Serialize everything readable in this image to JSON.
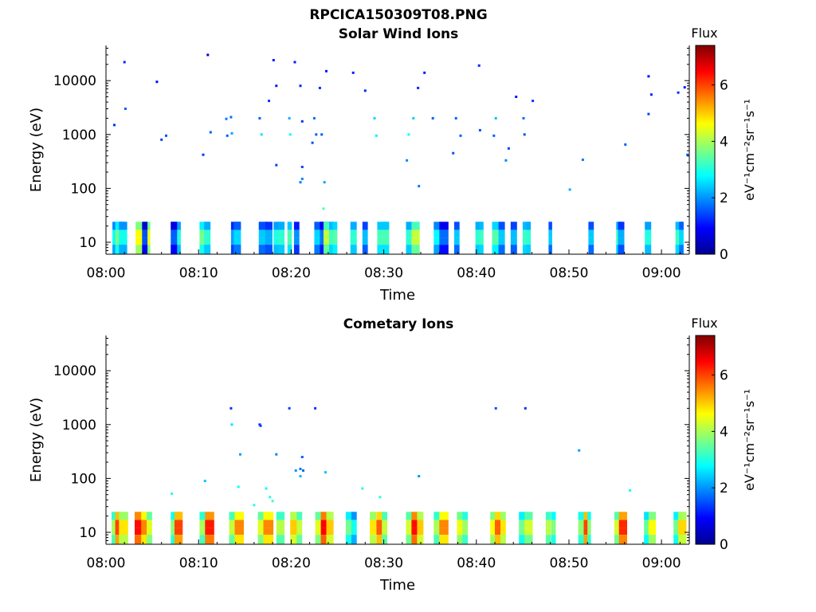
{
  "figure_title": "RPCICA150309T08.PNG",
  "chart_data": [
    {
      "type": "heatmap",
      "title": "Solar Wind Ions",
      "xlabel": "Time",
      "ylabel": "Energy (eV)",
      "yscale": "log",
      "xlim": [
        "08:00",
        "09:03"
      ],
      "ylim": [
        6,
        45000
      ],
      "x_ticks": [
        "08:00",
        "08:10",
        "08:20",
        "08:30",
        "08:40",
        "08:50",
        "09:00"
      ],
      "y_ticks": [
        "10",
        "100",
        "1000",
        "10000"
      ],
      "colorbar": {
        "label": "Flux",
        "unit": "eV⁻¹cm⁻²sr⁻¹s⁻¹",
        "range": [
          0,
          7.4
        ],
        "ticks": [
          "0",
          "2",
          "4",
          "6"
        ],
        "colormap": "jet"
      },
      "points": [
        [
          "08:00.9",
          1500,
          1.3
        ],
        [
          "08:02.0",
          22000,
          1.2
        ],
        [
          "08:02.1",
          3000,
          1.6
        ],
        [
          "08:05.5",
          9500,
          1.0
        ],
        [
          "08:06.0",
          800,
          1.4
        ],
        [
          "08:06.5",
          950,
          1.5
        ],
        [
          "08:10.5",
          420,
          1.3
        ],
        [
          "08:11.0",
          30000,
          0.8
        ],
        [
          "08:11.3",
          1100,
          1.6
        ],
        [
          "08:13.0",
          1950,
          1.8
        ],
        [
          "08:13.1",
          950,
          1.6
        ],
        [
          "08:13.6",
          1050,
          2.1
        ],
        [
          "08:13.5",
          2100,
          1.7
        ],
        [
          "08:16.6",
          2000,
          1.6
        ],
        [
          "08:16.8",
          1000,
          2.6
        ],
        [
          "08:17.6",
          4200,
          1.3
        ],
        [
          "08:18.1",
          24000,
          1.1
        ],
        [
          "08:18.4",
          8000,
          1.1
        ],
        [
          "08:18.4",
          270,
          1.4
        ],
        [
          "08:19.8",
          2000,
          2.2
        ],
        [
          "08:19.9",
          1000,
          2.8
        ],
        [
          "08:20.4",
          22000,
          1.1
        ],
        [
          "08:21.0",
          8000,
          1.2
        ],
        [
          "08:21.2",
          1750,
          1.3
        ],
        [
          "08:21.2",
          250,
          1.4
        ],
        [
          "08:21.0",
          130,
          1.8
        ],
        [
          "08:21.2",
          150,
          1.9
        ],
        [
          "08:22.3",
          700,
          1.5
        ],
        [
          "08:22.5",
          2000,
          1.7
        ],
        [
          "08:22.7",
          1000,
          1.6
        ],
        [
          "08:23.1",
          7300,
          1.2
        ],
        [
          "08:23.3",
          1000,
          1.6
        ],
        [
          "08:23.6",
          130,
          2.1
        ],
        [
          "08:23.5",
          42,
          3.3
        ],
        [
          "08:23.8",
          15000,
          1.1
        ],
        [
          "08:26.7",
          14000,
          1.1
        ],
        [
          "08:28.0",
          6500,
          1.2
        ],
        [
          "08:29.0",
          2000,
          2.5
        ],
        [
          "08:29.2",
          950,
          2.7
        ],
        [
          "08:32.5",
          330,
          1.9
        ],
        [
          "08:32.7",
          1000,
          2.8
        ],
        [
          "08:33.2",
          2000,
          2.4
        ],
        [
          "08:33.7",
          7300,
          1.2
        ],
        [
          "08:33.8",
          110,
          1.8
        ],
        [
          "08:34.4",
          14000,
          1.1
        ],
        [
          "08:35.3",
          2000,
          1.6
        ],
        [
          "08:37.5",
          450,
          1.5
        ],
        [
          "08:37.8",
          2000,
          1.6
        ],
        [
          "08:38.3",
          950,
          1.6
        ],
        [
          "08:40.3",
          19000,
          1.2
        ],
        [
          "08:40.4",
          1200,
          1.5
        ],
        [
          "08:41.9",
          950,
          1.6
        ],
        [
          "08:42.1",
          2000,
          2.3
        ],
        [
          "08:43.2",
          330,
          1.9
        ],
        [
          "08:43.5",
          550,
          1.4
        ],
        [
          "08:44.3",
          5000,
          1.1
        ],
        [
          "08:45.1",
          2000,
          1.7
        ],
        [
          "08:45.2",
          1000,
          1.5
        ],
        [
          "08:46.1",
          4200,
          1.3
        ],
        [
          "08:50.1",
          95,
          2.2
        ],
        [
          "08:51.5",
          340,
          1.8
        ],
        [
          "08:56.1",
          650,
          1.6
        ],
        [
          "08:58.6",
          12000,
          1.0
        ],
        [
          "08:58.6",
          2400,
          1.4
        ],
        [
          "08:58.9",
          5500,
          1.2
        ],
        [
          "09:01.8",
          6000,
          1.3
        ],
        [
          "09:02.5",
          7500,
          1.1
        ],
        [
          "09:02.8",
          420,
          1.6
        ]
      ],
      "bursts": [
        [
          "08:00.7",
          1.2,
          2.8
        ],
        [
          "08:01.0",
          1.0,
          3.6
        ],
        [
          "08:01.4",
          0.8,
          2.9
        ],
        [
          "08:03.2",
          0.7,
          4.6
        ],
        [
          "08:03.9",
          0.8,
          4.5
        ],
        [
          "08:03.9",
          0.5,
          1.5
        ],
        [
          "08:07.0",
          1.0,
          3.0
        ],
        [
          "08:07.0",
          0.6,
          1.6
        ],
        [
          "08:10.1",
          0.9,
          3.6
        ],
        [
          "08:10.6",
          0.6,
          3.1
        ],
        [
          "08:13.5",
          0.9,
          2.1
        ],
        [
          "08:13.8",
          0.7,
          2.5
        ],
        [
          "08:16.5",
          0.9,
          2.4
        ],
        [
          "08:17.2",
          0.7,
          2.2
        ],
        [
          "08:18.1",
          0.7,
          3.0
        ],
        [
          "08:18.6",
          0.6,
          3.1
        ],
        [
          "08:19.6",
          0.4,
          3.3
        ],
        [
          "08:20.3",
          0.5,
          2.0
        ],
        [
          "08:22.5",
          0.9,
          2.5
        ],
        [
          "08:23.1",
          1.0,
          1.8
        ],
        [
          "08:23.5",
          0.6,
          4.2
        ],
        [
          "08:24.1",
          0.5,
          3.2
        ],
        [
          "08:24.5",
          0.4,
          3.4
        ],
        [
          "08:26.4",
          0.6,
          3.1
        ],
        [
          "08:27.7",
          0.5,
          2.3
        ],
        [
          "08:29.3",
          0.9,
          3.3
        ],
        [
          "08:29.9",
          0.6,
          3.3
        ],
        [
          "08:32.4",
          0.6,
          3.1
        ],
        [
          "08:33.0",
          0.8,
          4.2
        ],
        [
          "08:35.4",
          0.6,
          2.8
        ],
        [
          "08:36.0",
          0.9,
          1.7
        ],
        [
          "08:37.6",
          0.5,
          2.4
        ],
        [
          "08:39.9",
          0.6,
          3.1
        ],
        [
          "08:40.3",
          0.4,
          3.2
        ],
        [
          "08:41.7",
          0.7,
          3.4
        ],
        [
          "08:42.4",
          0.6,
          2.4
        ],
        [
          "08:43.7",
          0.6,
          2.3
        ],
        [
          "08:45.0",
          0.7,
          3.2
        ],
        [
          "08:45.4",
          0.4,
          3.1
        ],
        [
          "08:47.8",
          0.3,
          2.4
        ],
        [
          "08:52.1",
          0.5,
          2.4
        ],
        [
          "08:55.1",
          0.6,
          3.2
        ],
        [
          "08:55.3",
          0.6,
          2.2
        ],
        [
          "08:58.2",
          0.6,
          3.0
        ],
        [
          "09:01.5",
          0.8,
          3.2
        ],
        [
          "09:01.9",
          0.4,
          2.5
        ]
      ]
    },
    {
      "type": "heatmap",
      "title": "Cometary Ions",
      "xlabel": "Time",
      "ylabel": "Energy (eV)",
      "yscale": "log",
      "xlim": [
        "08:00",
        "09:03"
      ],
      "ylim": [
        6,
        45000
      ],
      "x_ticks": [
        "08:00",
        "08:10",
        "08:20",
        "08:30",
        "08:40",
        "08:50",
        "09:00"
      ],
      "y_ticks": [
        "10",
        "100",
        "1000",
        "10000"
      ],
      "colorbar": {
        "label": "Flux",
        "unit": "eV⁻¹cm⁻²sr⁻¹s⁻¹",
        "range": [
          0,
          7.4
        ],
        "ticks": [
          "0",
          "2",
          "4",
          "6"
        ],
        "colormap": "jet"
      },
      "points": [
        [
          "08:13.5",
          2000,
          1.3
        ],
        [
          "08:13.6",
          1000,
          2.6
        ],
        [
          "08:14.5",
          280,
          2.1
        ],
        [
          "08:14.3",
          70,
          2.8
        ],
        [
          "08:16.6",
          1000,
          1.2
        ],
        [
          "08:16.7",
          950,
          1.4
        ],
        [
          "08:17.3",
          65,
          2.8
        ],
        [
          "08:18.4",
          280,
          1.9
        ],
        [
          "08:19.8",
          2000,
          1.4
        ],
        [
          "08:20.5",
          140,
          2.0
        ],
        [
          "08:21.0",
          150,
          1.8
        ],
        [
          "08:21.3",
          140,
          1.7
        ],
        [
          "08:21.2",
          250,
          1.6
        ],
        [
          "08:21.0",
          110,
          2.2
        ],
        [
          "08:22.6",
          2000,
          1.3
        ],
        [
          "08:23.7",
          130,
          2.3
        ],
        [
          "08:10.7",
          90,
          2.4
        ],
        [
          "08:07.1",
          52,
          3.0
        ],
        [
          "08:27.7",
          65,
          3.0
        ],
        [
          "08:29.6",
          45,
          3.0
        ],
        [
          "08:33.8",
          110,
          2.0
        ],
        [
          "08:42.1",
          2000,
          1.5
        ],
        [
          "08:45.3",
          2000,
          1.3
        ],
        [
          "08:51.1",
          330,
          2.1
        ],
        [
          "08:56.6",
          60,
          2.9
        ],
        [
          "08:16.0",
          32,
          3.0
        ],
        [
          "08:17.7",
          45,
          3.0
        ],
        [
          "08:18.0",
          38,
          3.2
        ]
      ],
      "bursts": [
        [
          "08:00.6",
          0.8,
          4.0
        ],
        [
          "08:01.0",
          1.0,
          6.0
        ],
        [
          "08:01.4",
          0.9,
          4.8
        ],
        [
          "08:03.1",
          1.0,
          6.4
        ],
        [
          "08:03.8",
          0.9,
          5.5
        ],
        [
          "08:04.4",
          0.5,
          4.4
        ],
        [
          "08:07.0",
          1.0,
          3.8
        ],
        [
          "08:07.4",
          0.8,
          6.0
        ],
        [
          "08:10.1",
          1.0,
          4.0
        ],
        [
          "08:10.7",
          0.9,
          6.3
        ],
        [
          "08:13.3",
          0.8,
          4.2
        ],
        [
          "08:13.9",
          0.9,
          5.5
        ],
        [
          "08:16.4",
          0.8,
          4.4
        ],
        [
          "08:17.0",
          1.0,
          5.5
        ],
        [
          "08:18.4",
          0.8,
          4.1
        ],
        [
          "08:19.9",
          0.8,
          5.0
        ],
        [
          "08:20.6",
          0.5,
          4.2
        ],
        [
          "08:22.6",
          0.8,
          4.4
        ],
        [
          "08:23.2",
          1.0,
          6.5
        ],
        [
          "08:23.8",
          0.7,
          5.0
        ],
        [
          "08:25.9",
          0.8,
          3.6
        ],
        [
          "08:26.5",
          0.5,
          2.9
        ],
        [
          "08:28.5",
          0.6,
          4.8
        ],
        [
          "08:29.2",
          0.8,
          5.8
        ],
        [
          "08:29.8",
          0.5,
          4.2
        ],
        [
          "08:32.4",
          0.6,
          4.3
        ],
        [
          "08:33.0",
          1.0,
          6.4
        ],
        [
          "08:33.6",
          0.6,
          5.0
        ],
        [
          "08:35.4",
          0.7,
          4.0
        ],
        [
          "08:36.0",
          0.9,
          5.5
        ],
        [
          "08:37.9",
          0.7,
          4.5
        ],
        [
          "08:38.5",
          0.5,
          3.9
        ],
        [
          "08:41.5",
          0.7,
          4.6
        ],
        [
          "08:42.0",
          0.9,
          5.8
        ],
        [
          "08:42.6",
          0.5,
          4.8
        ],
        [
          "08:44.6",
          0.6,
          3.6
        ],
        [
          "08:45.2",
          0.8,
          4.3
        ],
        [
          "08:47.5",
          0.5,
          4.1
        ],
        [
          "08:48.1",
          0.4,
          3.7
        ],
        [
          "08:51.0",
          0.7,
          3.8
        ],
        [
          "08:51.6",
          0.6,
          6.0
        ],
        [
          "08:52.0",
          0.3,
          3.8
        ],
        [
          "08:54.9",
          0.6,
          4.3
        ],
        [
          "08:55.4",
          0.8,
          6.2
        ],
        [
          "08:58.1",
          0.6,
          3.5
        ],
        [
          "08:58.6",
          0.7,
          4.6
        ],
        [
          "09:01.3",
          0.9,
          3.6
        ],
        [
          "09:01.8",
          0.8,
          4.9
        ]
      ]
    }
  ]
}
